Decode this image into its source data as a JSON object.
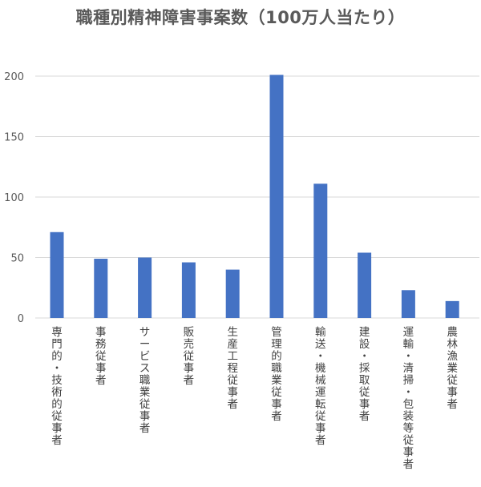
{
  "chart_data": {
    "type": "bar",
    "title": "職種別精神障害事案数（100万人当たり）",
    "xlabel": "",
    "ylabel": "",
    "ylim": [
      0,
      200
    ],
    "yticks": [
      0,
      50,
      100,
      150,
      200
    ],
    "grid": true,
    "legend": "none",
    "categories": [
      "専門的・技術的従事者",
      "事務従事者",
      "サービス職業従事者",
      "販売従事者",
      "生産工程従事者",
      "管理的職業従事者",
      "輸送・機械運転従事者",
      "建設・採取従事者",
      "運輸・清掃・包装等従事者",
      "農林漁業従事者"
    ],
    "values": [
      71,
      49,
      50,
      46,
      40,
      201,
      111,
      54,
      23,
      14
    ],
    "colors": {
      "bar": "#4472C4",
      "grid": "#D9D9D9",
      "text": "#595959"
    }
  }
}
